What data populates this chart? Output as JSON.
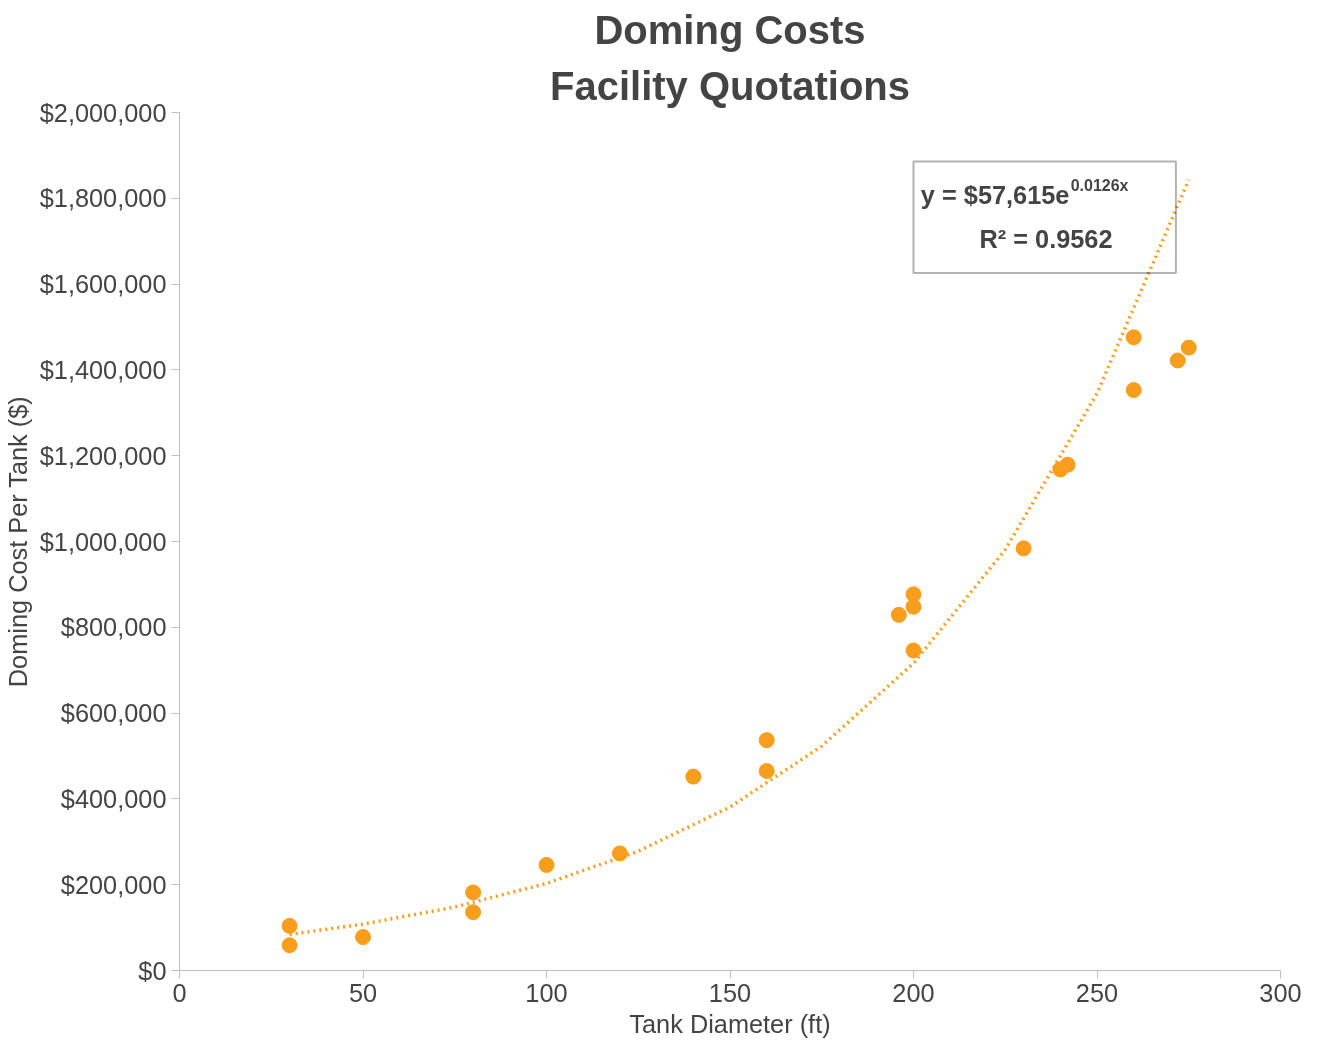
{
  "chart_data": {
    "type": "scatter",
    "title": "Doming Costs",
    "subtitle": "Facility Quotations",
    "xlabel": "Tank Diameter (ft)",
    "ylabel": "Doming Cost Per Tank ($)",
    "series": [
      {
        "color": "#f99d1c",
        "x": [
          30,
          30,
          50,
          80,
          80,
          100,
          120,
          140,
          160,
          160,
          196,
          200,
          200,
          200,
          230,
          240,
          242,
          260,
          260,
          272,
          275
        ],
        "values": [
          104000,
          59000,
          78000,
          182000,
          136000,
          246000,
          273000,
          452000,
          537000,
          465000,
          829000,
          877000,
          848000,
          746000,
          984000,
          1168000,
          1179000,
          1476000,
          1353000,
          1422000,
          1452000
        ]
      },
      {
        "type": "line",
        "color": "#f99d1c",
        "line_style": "dotted",
        "marker": "none",
        "x": [
          30,
          50,
          75,
          100,
          125,
          150,
          175,
          200,
          225,
          250,
          275
        ],
        "values": [
          84000,
          108000,
          148000,
          203000,
          278000,
          381000,
          523000,
          716000,
          981000,
          1345000,
          1843000
        ]
      }
    ],
    "marker": "circle",
    "grid": false,
    "xlim": [
      0,
      300
    ],
    "xticks": [
      0,
      50,
      100,
      150,
      200,
      250,
      300
    ],
    "ylim": [
      0,
      2000000
    ],
    "yticks": [
      {
        "value": 0,
        "label": "$0"
      },
      {
        "value": 200000,
        "label": "$200,000"
      },
      {
        "value": 400000,
        "label": "$400,000"
      },
      {
        "value": 600000,
        "label": "$600,000"
      },
      {
        "value": 800000,
        "label": "$800,000"
      },
      {
        "value": 1000000,
        "label": "$1,000,000"
      },
      {
        "value": 1200000,
        "label": "$1,200,000"
      },
      {
        "value": 1400000,
        "label": "$1,400,000"
      },
      {
        "value": 1600000,
        "label": "$1,600,000"
      },
      {
        "value": 1800000,
        "label": "$1,800,000"
      },
      {
        "value": 2000000,
        "label": "$2,000,000"
      }
    ],
    "annotations": [
      "y = $57,615e$^{0.0126x}$",
      "R² = 0.9562"
    ]
  }
}
